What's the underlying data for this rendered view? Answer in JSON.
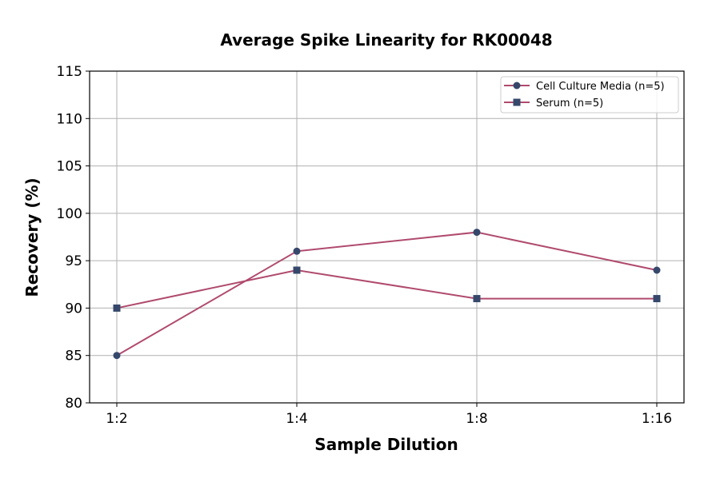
{
  "chart_data": {
    "type": "line",
    "title": "Average Spike Linearity for RK00048",
    "xlabel": "Sample Dilution",
    "ylabel": "Recovery (%)",
    "categories": [
      "1:2",
      "1:4",
      "1:8",
      "1:16"
    ],
    "ylim": [
      80,
      115
    ],
    "yticks": [
      80,
      85,
      90,
      95,
      100,
      105,
      110,
      115
    ],
    "grid": true,
    "legend_placement": "upper-right",
    "series": [
      {
        "name": "Cell Culture Media (n=5)",
        "values": [
          85,
          96,
          98,
          94
        ],
        "marker": "circle",
        "line_color": "#b04a6e",
        "marker_color": "#35486b"
      },
      {
        "name": "Serum (n=5)",
        "values": [
          90,
          94,
          91,
          91
        ],
        "marker": "square",
        "line_color": "#b04a6e",
        "marker_color": "#35486b"
      }
    ]
  }
}
